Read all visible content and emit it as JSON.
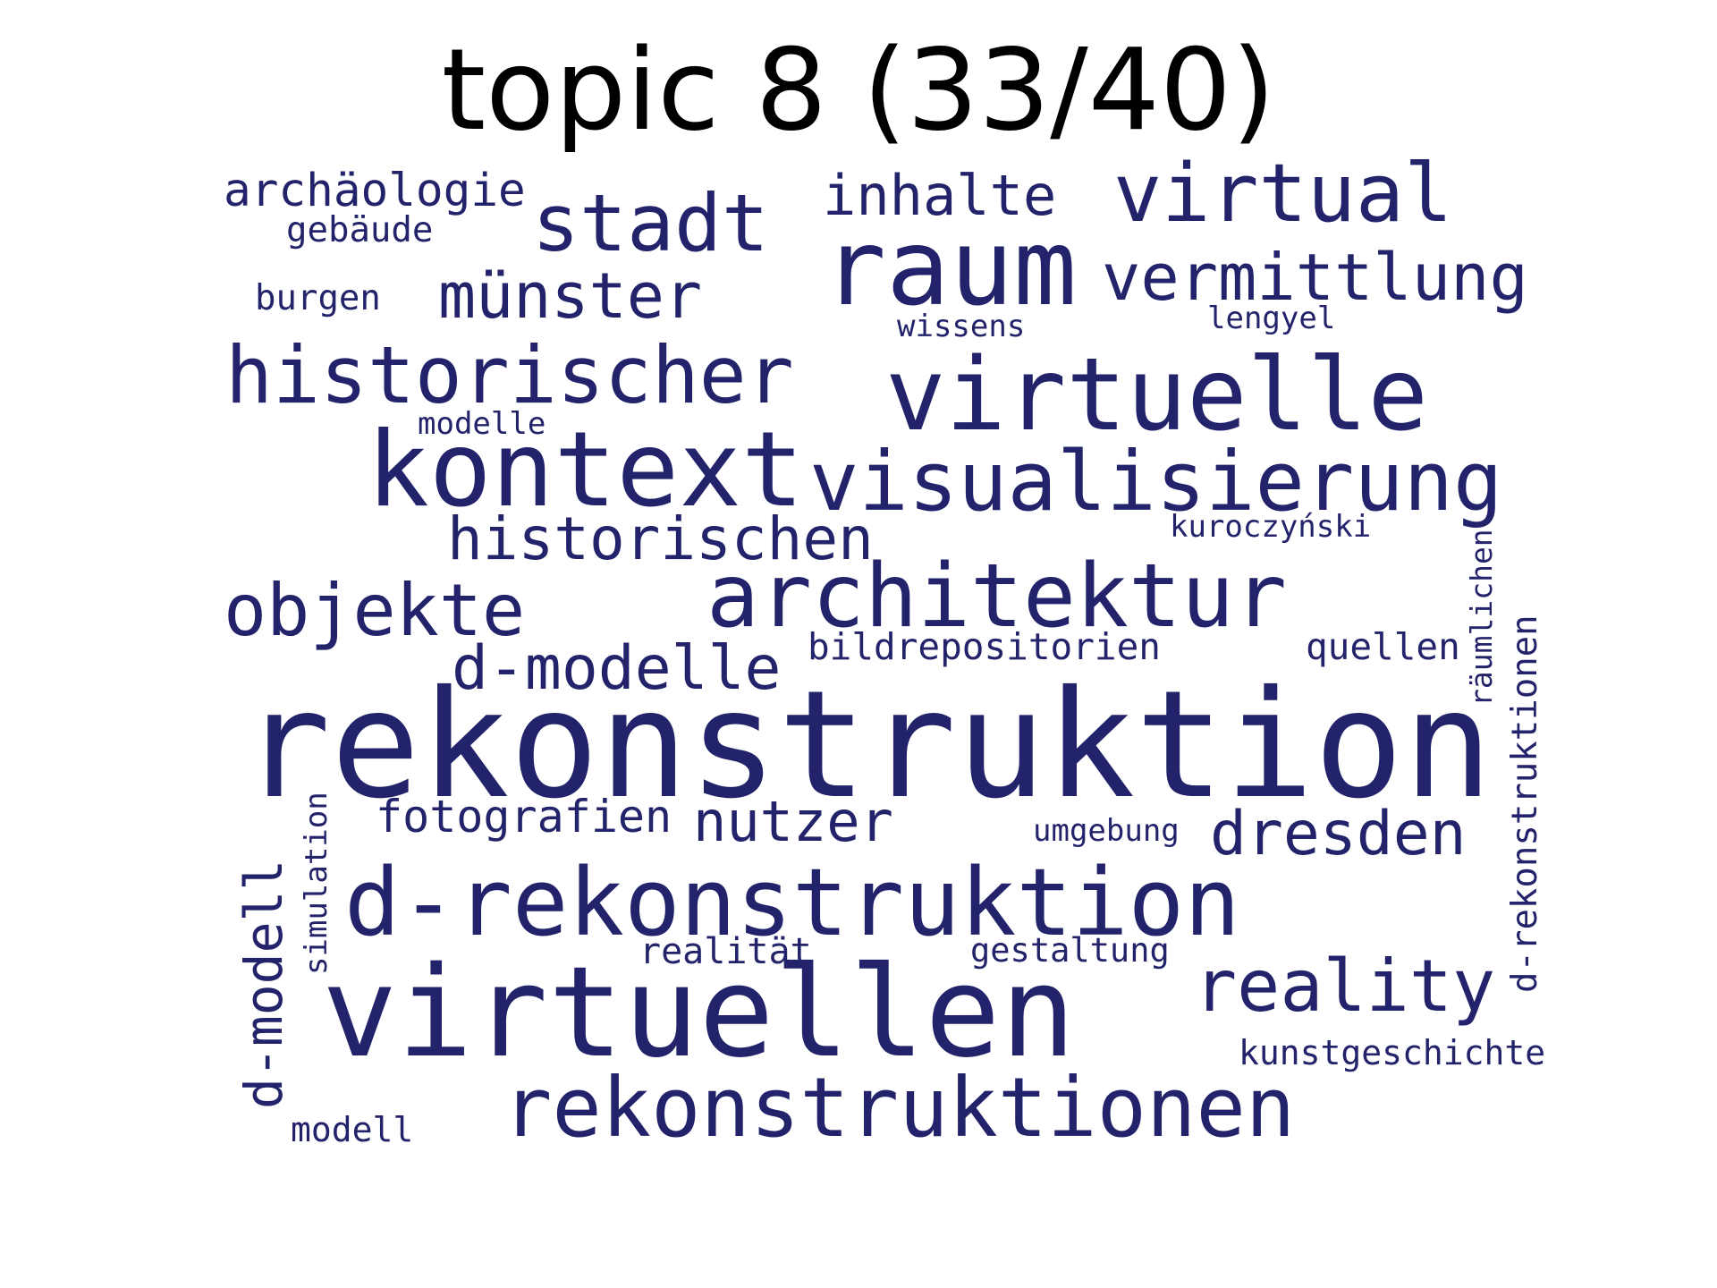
{
  "title": "topic 8 (33/40)",
  "word_color": "#23236b",
  "words": [
    {
      "text": "rekonstruktion"
    },
    {
      "text": "virtuellen"
    },
    {
      "text": "d-rekonstruktion"
    },
    {
      "text": "rekonstruktionen"
    },
    {
      "text": "raum"
    },
    {
      "text": "virtuelle"
    },
    {
      "text": "kontext"
    },
    {
      "text": "visualisierung"
    },
    {
      "text": "architektur"
    },
    {
      "text": "historischer"
    },
    {
      "text": "stadt"
    },
    {
      "text": "virtual"
    },
    {
      "text": "vermittlung"
    },
    {
      "text": "münster"
    },
    {
      "text": "objekte"
    },
    {
      "text": "historischen"
    },
    {
      "text": "d-modelle"
    },
    {
      "text": "inhalte"
    },
    {
      "text": "archäologie"
    },
    {
      "text": "gebäude"
    },
    {
      "text": "burgen"
    },
    {
      "text": "wissens"
    },
    {
      "text": "lengyel"
    },
    {
      "text": "modelle"
    },
    {
      "text": "kuroczyński"
    },
    {
      "text": "bildrepositorien"
    },
    {
      "text": "quellen"
    },
    {
      "text": "räumlichen"
    },
    {
      "text": "d-rekonstruktionen"
    },
    {
      "text": "fotografien"
    },
    {
      "text": "nutzer"
    },
    {
      "text": "dresden"
    },
    {
      "text": "umgebung"
    },
    {
      "text": "simulation"
    },
    {
      "text": "d-modell"
    },
    {
      "text": "realität"
    },
    {
      "text": "gestaltung"
    },
    {
      "text": "reality"
    },
    {
      "text": "kunstgeschichte"
    },
    {
      "text": "modell"
    }
  ]
}
